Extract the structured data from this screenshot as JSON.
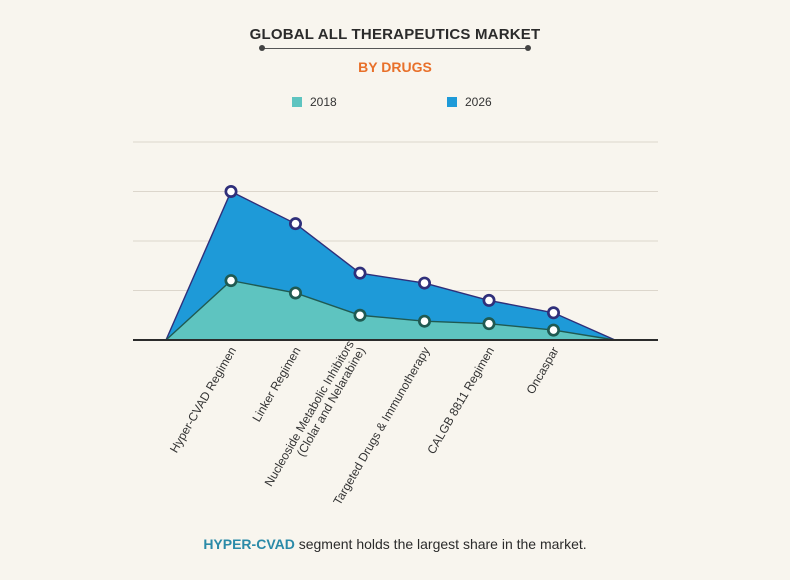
{
  "title": "GLOBAL ALL THERAPEUTICS MARKET",
  "subtitle": "BY DRUGS",
  "footer": {
    "highlight": "HYPER-CVAD",
    "text": " segment holds the largest share in the market."
  },
  "colors": {
    "series_2018": "#5ec4c0",
    "series_2026": "#1e9ad8",
    "marker_2018_ring": "#1f5a52",
    "marker_2026_ring": "#2f2f7a",
    "accent": "#e8702a"
  },
  "chart_data": {
    "type": "area",
    "categories": [
      "Hyper-CVAD Regimen",
      "Linker Regimen",
      "Nucleoside Metabolic Inhibitors (Clolar and Nelarabine)",
      "Targeted Drugs & Immunotherapy",
      "CALGB 8811 Regimen",
      "Oncaspar"
    ],
    "category_labels": [
      [
        "Hyper-CVAD Regimen"
      ],
      [
        "Linker Regimen"
      ],
      [
        "Nucleoside Metabolic Inhibitors",
        "(Clolar and Nelarabine)"
      ],
      [
        "Targeted Drugs & Immunotherapy"
      ],
      [
        "CALGB 8811 Regimen"
      ],
      [
        "Oncaspar"
      ]
    ],
    "series": [
      {
        "name": "2018",
        "values": [
          1.2,
          0.95,
          0.5,
          0.38,
          0.33,
          0.2
        ]
      },
      {
        "name": "2026",
        "values": [
          3.0,
          2.35,
          1.35,
          1.15,
          0.8,
          0.55
        ]
      }
    ],
    "ylim": [
      0,
      4
    ],
    "grid": true,
    "legend": "top"
  }
}
